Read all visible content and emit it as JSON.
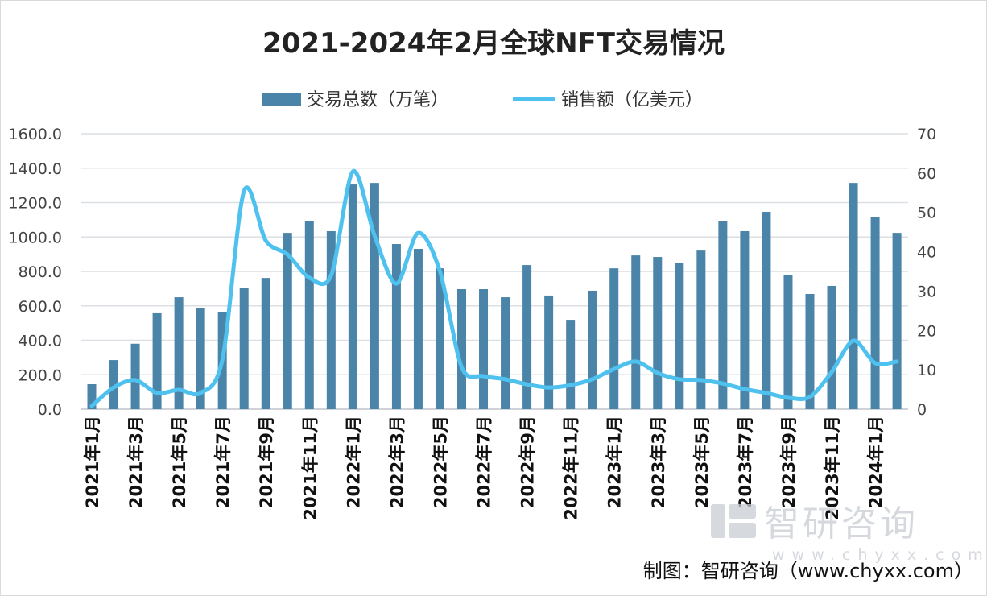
{
  "chart_data": {
    "type": "bar+line",
    "title": "2021-2024年2月全球NFT交易情况",
    "legend_position": "top",
    "grid": true,
    "categories": [
      "2021年1月",
      "2021年2月",
      "2021年3月",
      "2021年4月",
      "2021年5月",
      "2021年6月",
      "2021年7月",
      "2021年8月",
      "2021年9月",
      "2021年10月",
      "2021年11月",
      "2021年12月",
      "2022年1月",
      "2022年2月",
      "2022年3月",
      "2022年4月",
      "2022年5月",
      "2022年6月",
      "2022年7月",
      "2022年8月",
      "2022年9月",
      "2022年10月",
      "2022年11月",
      "2022年12月",
      "2023年1月",
      "2023年2月",
      "2023年3月",
      "2023年4月",
      "2023年5月",
      "2023年6月",
      "2023年7月",
      "2023年8月",
      "2023年9月",
      "2023年10月",
      "2023年11月",
      "2023年12月",
      "2024年1月",
      "2024年2月"
    ],
    "x_tick_labels": [
      "2021年1月",
      "2021年3月",
      "2021年5月",
      "2021年7月",
      "2021年9月",
      "2021年11月",
      "2022年1月",
      "2022年3月",
      "2022年5月",
      "2022年7月",
      "2022年9月",
      "2022年11月",
      "2023年1月",
      "2023年3月",
      "2023年5月",
      "2023年7月",
      "2023年9月",
      "2023年11月",
      "2024年1月"
    ],
    "left_axis": {
      "ylim": [
        0,
        1600
      ],
      "ticks": [
        "0.0",
        "200.0",
        "400.0",
        "600.0",
        "800.0",
        "1000.0",
        "1200.0",
        "1400.0",
        "1600.0"
      ]
    },
    "right_axis": {
      "ylim": [
        0,
        70
      ],
      "ticks": [
        "0",
        "10",
        "20",
        "30",
        "40",
        "50",
        "60",
        "70"
      ]
    },
    "series": [
      {
        "name": "交易总数（万笔）",
        "type": "bar",
        "axis": "left",
        "color": "#4a84a8",
        "values": [
          145,
          285,
          380,
          557,
          650,
          589,
          566,
          706,
          762,
          1024,
          1090,
          1034,
          1305,
          1314,
          959,
          931,
          818,
          697,
          697,
          650,
          837,
          660,
          519,
          688,
          818,
          893,
          884,
          847,
          921,
          1090,
          1034,
          1146,
          781,
          669,
          716,
          1314,
          1118,
          1024
        ]
      },
      {
        "name": "销售额（亿美元）",
        "type": "line",
        "axis": "right",
        "color": "#4fc1ef",
        "values": [
          0.8,
          5.5,
          7.4,
          4.1,
          4.9,
          4.1,
          12.5,
          55.5,
          42.8,
          39.3,
          33.4,
          34.0,
          60.4,
          44.0,
          31.9,
          44.8,
          35.0,
          10.6,
          8.4,
          7.6,
          6.3,
          5.5,
          6.1,
          7.6,
          10.2,
          12.1,
          9.2,
          7.6,
          7.4,
          6.5,
          5.1,
          4.1,
          2.9,
          3.1,
          9.4,
          17.4,
          11.7,
          12.1
        ]
      }
    ]
  },
  "watermark": {
    "name": "智研咨询",
    "url": "www.chyxx.com"
  },
  "source": "制图：智研咨询（www.chyxx.com）"
}
